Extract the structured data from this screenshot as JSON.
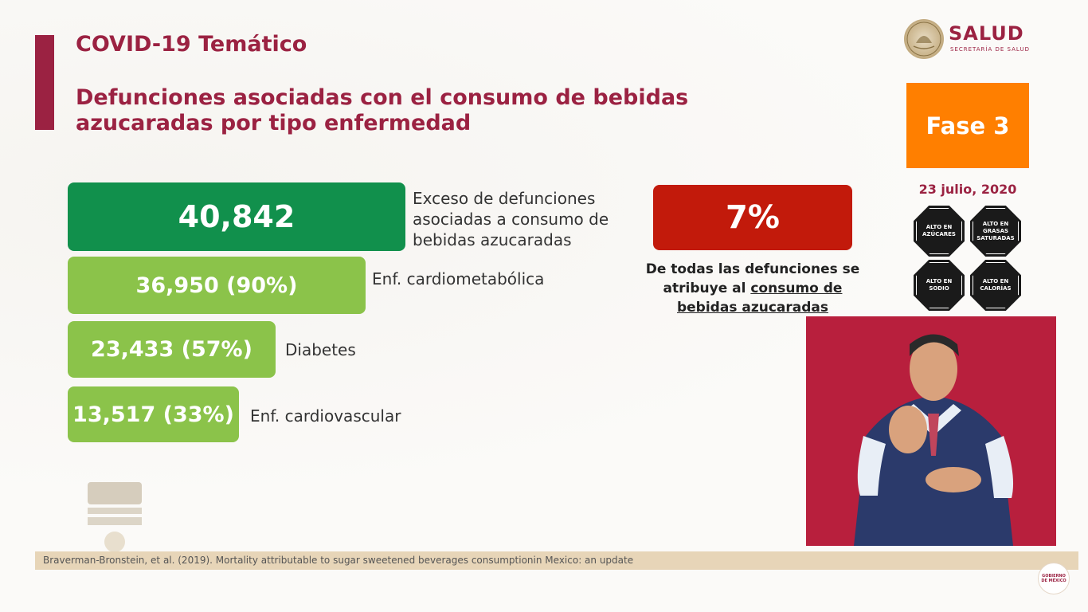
{
  "header": {
    "topic": "COVID-19 Temático",
    "title": "Defunciones asociadas con el consumo de bebidas azucaradas por tipo enfermedad"
  },
  "logo": {
    "name": "SALUD",
    "subtitle": "SECRETARÍA DE SALUD"
  },
  "phase": {
    "label": "Fase 3",
    "color": "#ff7f00"
  },
  "date": "23 julio, 2020",
  "warning_seals": [
    "ALTO EN AZÚCARES",
    "ALTO EN GRASAS SATURADAS",
    "ALTO EN SODIO",
    "ALTO EN CALORÍAS"
  ],
  "stats": {
    "total": {
      "value": "40,842",
      "label": "Exceso de defunciones asociadas a consumo de bebidas azucaradas",
      "color": "#11904c"
    },
    "cardiometabolic": {
      "value": "36,950 (90%)",
      "label": "Enf. cardiometabólica",
      "color": "#8bc34a"
    },
    "diabetes": {
      "value": "23,433 (57%)",
      "label": "Diabetes",
      "color": "#8bc34a"
    },
    "cardiovascular": {
      "value": "13,517 (33%)",
      "label": "Enf. cardiovascular",
      "color": "#8bc34a"
    }
  },
  "percentage": {
    "value": "7%",
    "caption_plain": "De todas las defunciones se atribuye al ",
    "caption_underlined": "consumo de bebidas azucaradas",
    "color": "#c21a0b"
  },
  "source": "Braverman-Bronstein, et al. (2019). Mortality attributable to sugar sweetened beverages consumptionin Mexico: an update",
  "colors": {
    "brand": "#9b2242",
    "source_bar": "#e7d5b8",
    "interpreter_bg": "#b81f3d"
  }
}
